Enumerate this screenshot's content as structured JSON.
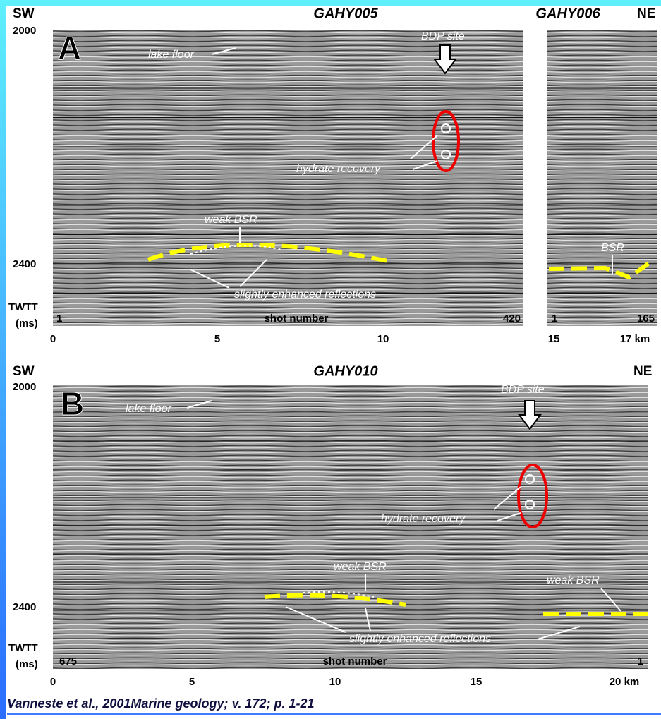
{
  "panel_a": {
    "label": "A",
    "sw": "SW",
    "line_1": "GAHY005",
    "line_2": "GAHY006",
    "ne": "NE",
    "y_top": "2000",
    "y_bottom": "2400",
    "axis_label_1": "TWTT",
    "axis_label_2": "(ms)",
    "lake_floor": "lake floor",
    "bdp_site": "BDP site",
    "hydrate_recovery": "hydrate recovery",
    "weak_bsr": "weak BSR",
    "bsr": "BSR",
    "enhanced": "slightly enhanced reflections",
    "shot_start_1": "1",
    "shot_number": "shot number",
    "shot_end_1": "420",
    "shot_start_2": "1",
    "shot_end_2": "165",
    "x_ticks": [
      "0",
      "5",
      "10",
      "15",
      "17 km"
    ]
  },
  "panel_b": {
    "label": "B",
    "sw": "SW",
    "line_1": "GAHY010",
    "ne": "NE",
    "y_top": "2000",
    "y_bottom": "2400",
    "axis_label_1": "TWTT",
    "axis_label_2": "(ms)",
    "lake_floor": "lake floor",
    "bdp_site": "BDP site",
    "hydrate_recovery": "hydrate recovery",
    "weak_bsr_1": "weak BSR",
    "weak_bsr_2": "weak BSR",
    "enhanced": "slightly enhanced reflections",
    "shot_start": "675",
    "shot_number": "shot number",
    "shot_end": "1",
    "x_ticks": [
      "0",
      "5",
      "10",
      "15",
      "20 km"
    ]
  },
  "citation": "Vanneste et al., 2001Marine geology; v. 172;  p. 1-21"
}
